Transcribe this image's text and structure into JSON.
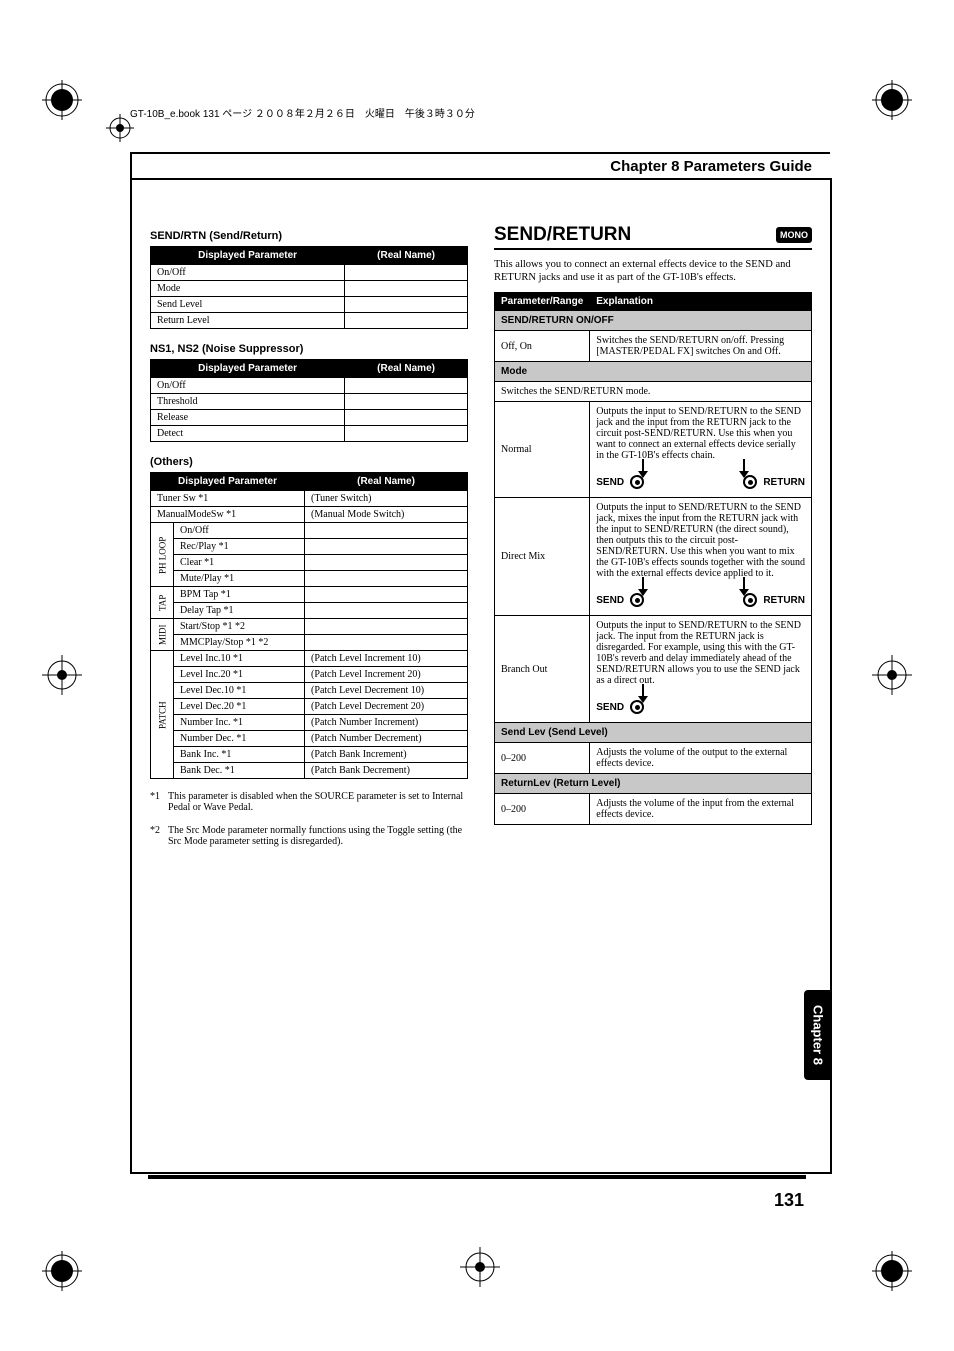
{
  "header_line": "GT-10B_e.book 131 ページ ２００８年２月２６日　火曜日　午後３時３０分",
  "chapter_title": "Chapter 8 Parameters Guide",
  "side_tab": "Chapter 8",
  "page_number": "131",
  "left": {
    "send_rtn": {
      "heading": "SEND/RTN (Send/Return)",
      "col1": "Displayed Parameter",
      "col2": "(Real Name)",
      "rows": [
        {
          "d": "On/Off",
          "r": ""
        },
        {
          "d": "Mode",
          "r": ""
        },
        {
          "d": "Send Level",
          "r": ""
        },
        {
          "d": "Return Level",
          "r": ""
        }
      ]
    },
    "ns": {
      "heading": "NS1, NS2 (Noise Suppressor)",
      "col1": "Displayed Parameter",
      "col2": "(Real Name)",
      "rows": [
        {
          "d": "On/Off",
          "r": ""
        },
        {
          "d": "Threshold",
          "r": ""
        },
        {
          "d": "Release",
          "r": ""
        },
        {
          "d": "Detect",
          "r": ""
        }
      ]
    },
    "others": {
      "heading": "(Others)",
      "col1": "Displayed Parameter",
      "col2": "(Real Name)",
      "top_rows": [
        {
          "d": "Tuner Sw *1",
          "r": "(Tuner Switch)"
        },
        {
          "d": "ManualModeSw *1",
          "r": "(Manual Mode Switch)"
        }
      ],
      "groups": [
        {
          "label": "PH LOOP",
          "rows": [
            {
              "d": "On/Off",
              "r": ""
            },
            {
              "d": "Rec/Play *1",
              "r": ""
            },
            {
              "d": "Clear *1",
              "r": ""
            },
            {
              "d": "Mute/Play *1",
              "r": ""
            }
          ]
        },
        {
          "label": "TAP",
          "rows": [
            {
              "d": "BPM Tap *1",
              "r": ""
            },
            {
              "d": "Delay Tap *1",
              "r": ""
            }
          ]
        },
        {
          "label": "MIDI",
          "rows": [
            {
              "d": "Start/Stop *1 *2",
              "r": ""
            },
            {
              "d": "MMCPlay/Stop *1 *2",
              "r": ""
            }
          ]
        },
        {
          "label": "PATCH",
          "rows": [
            {
              "d": "Level Inc.10 *1",
              "r": "(Patch Level Increment 10)"
            },
            {
              "d": "Level Inc.20 *1",
              "r": "(Patch Level Increment 20)"
            },
            {
              "d": "Level Dec.10 *1",
              "r": "(Patch Level Decrement 10)"
            },
            {
              "d": "Level Dec.20 *1",
              "r": "(Patch Level Decrement 20)"
            },
            {
              "d": "Number Inc. *1",
              "r": "(Patch Number Increment)"
            },
            {
              "d": "Number Dec. *1",
              "r": "(Patch Number Decrement)"
            },
            {
              "d": "Bank Inc. *1",
              "r": "(Patch Bank Increment)"
            },
            {
              "d": "Bank Dec. *1",
              "r": "(Patch Bank Decrement)"
            }
          ]
        }
      ]
    },
    "fn1": {
      "mark": "*1",
      "text": "This parameter is disabled when the SOURCE parameter is set to Internal Pedal or Wave Pedal."
    },
    "fn2": {
      "mark": "*2",
      "text": "The Src Mode parameter normally functions using the Toggle setting (the Src Mode parameter setting is disregarded)."
    }
  },
  "right": {
    "title": "SEND/RETURN",
    "mono": "MONO",
    "intro": "This allows you to connect an external effects device to the SEND and RETURN jacks and use it as part of the GT-10B's effects.",
    "th_param": "Parameter/Range",
    "th_expl": "Explanation",
    "sections": [
      {
        "subhead": "SEND/RETURN ON/OFF",
        "rows": [
          {
            "p": "Off, On",
            "e": "Switches the SEND/RETURN on/off. Pressing [MASTER/PEDAL FX] switches On and Off.",
            "diag": null
          }
        ]
      },
      {
        "subhead": "Mode",
        "lead": "Switches the SEND/RETURN mode.",
        "rows": [
          {
            "p": "Normal",
            "e": "Outputs the input to SEND/RETURN to the SEND jack and the input from the RETURN jack to the circuit post-SEND/RETURN. Use this when you want to connect an external effects device serially in the GT-10B's effects chain.",
            "diag": "sr"
          },
          {
            "p": "Direct Mix",
            "e": "Outputs the input to SEND/RETURN to the SEND jack, mixes the input from the RETURN jack with the input to SEND/RETURN (the direct sound), then outputs this to the circuit post-SEND/RETURN. Use this when you want to mix the GT-10B's effects sounds together with the sound with the external effects device applied to it.",
            "diag": "sr"
          },
          {
            "p": "Branch Out",
            "e": "Outputs the input to SEND/RETURN to the SEND jack. The input from the RETURN jack is disregarded. For example, using this with the GT-10B's reverb and delay immediately ahead of the SEND/RETURN allows you to use the SEND jack as a direct out.",
            "diag": "s"
          }
        ]
      },
      {
        "subhead": "Send Lev (Send Level)",
        "rows": [
          {
            "p": "0–200",
            "e": "Adjusts the volume of the output to the external effects device.",
            "diag": null
          }
        ]
      },
      {
        "subhead": "ReturnLev (Return Level)",
        "rows": [
          {
            "p": "0–200",
            "e": "Adjusts the volume of the input from the external effects device.",
            "diag": null
          }
        ]
      }
    ],
    "labels": {
      "send": "SEND",
      "return": "RETURN"
    }
  }
}
